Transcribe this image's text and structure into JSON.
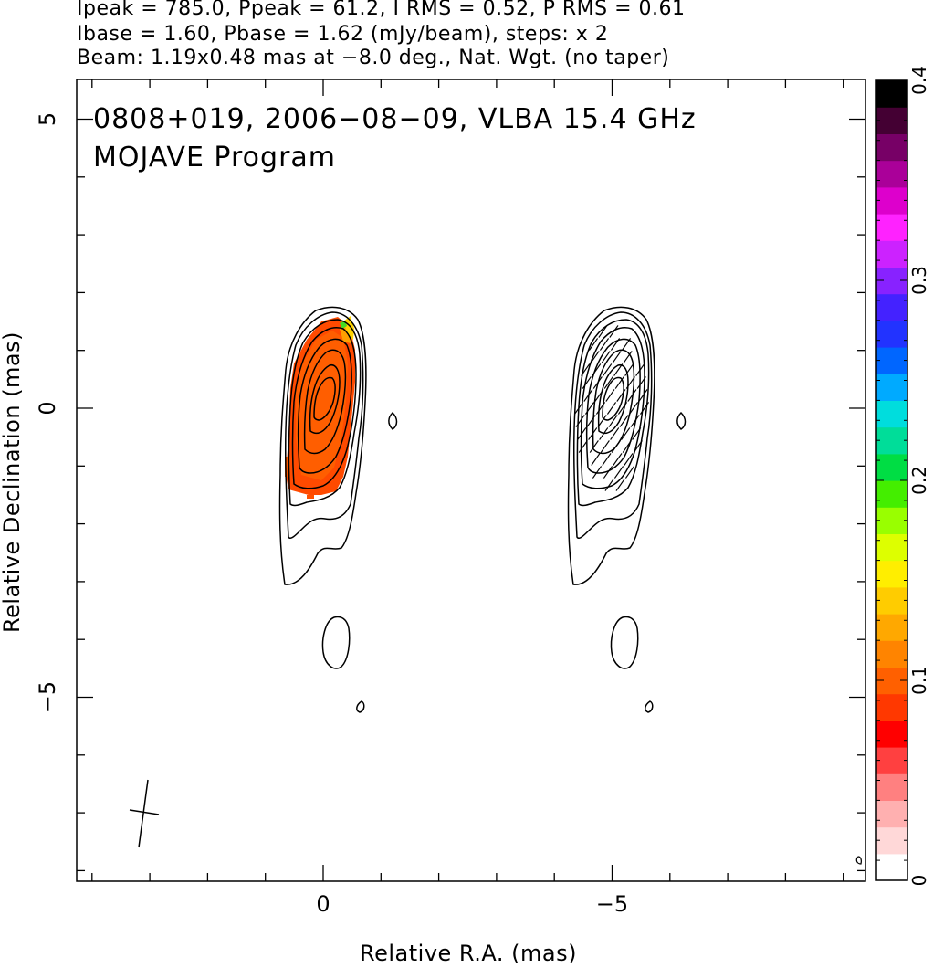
{
  "header": {
    "line1": "Ipeak = 785.0, Ppeak = 61.2, I RMS = 0.52, P RMS = 0.61",
    "line2": "Ibase = 1.60, Pbase = 1.62 (mJy/beam), steps: x 2",
    "line3": "Beam: 1.19x0.48 mas at −8.0 deg., Nat. Wgt. (no taper)"
  },
  "plot_title": {
    "line1": "0808+019, 2006−08−09, VLBA 15.4 GHz",
    "line2": "MOJAVE Program"
  },
  "chart_data": {
    "type": "heatmap",
    "title": "0808+019, 2006−08−09, VLBA 15.4 GHz",
    "subtitle": "MOJAVE Program",
    "xlabel": "Relative R.A. (mas)",
    "ylabel": "Relative Declination (mas)",
    "panels": [
      {
        "name": "left",
        "x_ticks": [
          {
            "value": 0,
            "label": "0"
          }
        ],
        "xlim": [
          4.3,
          -9.7
        ]
      },
      {
        "name": "right",
        "x_ticks": [
          {
            "value": -5,
            "label": "−5"
          }
        ],
        "xlim": [
          4.3,
          -9.7
        ]
      }
    ],
    "xlim": [
      4.3,
      -9.7
    ],
    "ylim": [
      -8.1,
      5.8
    ],
    "y_ticks": [
      {
        "value": 5,
        "label": "5"
      },
      {
        "value": 0,
        "label": "0"
      },
      {
        "value": -5,
        "label": "−5"
      }
    ],
    "colorbar": {
      "range": [
        0,
        0.4
      ],
      "ticks": [
        {
          "value": 0,
          "label": "0"
        },
        {
          "value": 0.1,
          "label": "0.1"
        },
        {
          "value": 0.2,
          "label": "0.2"
        },
        {
          "value": 0.3,
          "label": "0.3"
        },
        {
          "value": 0.4,
          "label": "0.4"
        }
      ],
      "colors": [
        "#ffffff",
        "#ffd8d8",
        "#ffb0b0",
        "#ff8080",
        "#ff4040",
        "#ff0000",
        "#ff3800",
        "#ff6000",
        "#ff8400",
        "#ffa800",
        "#ffcc00",
        "#ffee00",
        "#ddff00",
        "#99ff00",
        "#44ee00",
        "#00dd44",
        "#00dd99",
        "#00dddd",
        "#00aaff",
        "#0066ff",
        "#2233ff",
        "#4422ff",
        "#8822ff",
        "#cc22ff",
        "#ff22ff",
        "#dd00cc",
        "#aa0099",
        "#770066",
        "#440033",
        "#000000"
      ]
    },
    "beam": {
      "major_mas": 1.19,
      "minor_mas": 0.48,
      "pa_deg": -8.0
    },
    "contour_base_mJy": 1.6,
    "contour_step": 2,
    "peak_I_mJy": 785.0,
    "peak_P_mJy": 61.2
  }
}
